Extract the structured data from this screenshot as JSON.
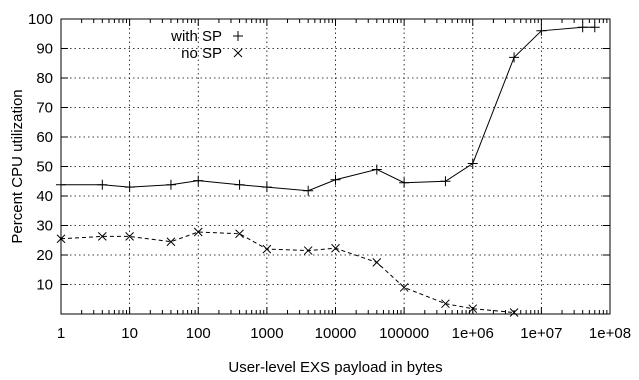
{
  "chart_data": {
    "type": "line",
    "title": "",
    "xlabel": "User-level EXS payload in bytes",
    "ylabel": "Percent CPU utilization",
    "x_scale": "log",
    "xlim": [
      1,
      100000000
    ],
    "ylim": [
      0,
      100
    ],
    "grid": true,
    "legend_position": "top-left",
    "x_ticks": [
      {
        "value": 1,
        "label": "1"
      },
      {
        "value": 10,
        "label": "10"
      },
      {
        "value": 100,
        "label": "100"
      },
      {
        "value": 1000,
        "label": "1000"
      },
      {
        "value": 10000,
        "label": "10000"
      },
      {
        "value": 100000,
        "label": "100000"
      },
      {
        "value": 1000000,
        "label": "1e+06"
      },
      {
        "value": 10000000,
        "label": "1e+07"
      },
      {
        "value": 100000000,
        "label": "1e+08"
      }
    ],
    "y_ticks": [
      {
        "value": 10,
        "label": "10"
      },
      {
        "value": 20,
        "label": "20"
      },
      {
        "value": 30,
        "label": "30"
      },
      {
        "value": 40,
        "label": "40"
      },
      {
        "value": 50,
        "label": "50"
      },
      {
        "value": 60,
        "label": "60"
      },
      {
        "value": 70,
        "label": "70"
      },
      {
        "value": 80,
        "label": "80"
      },
      {
        "value": 90,
        "label": "90"
      },
      {
        "value": 100,
        "label": "100"
      }
    ],
    "series": [
      {
        "name": "with SP",
        "marker": "plus",
        "line_style": "solid",
        "x": [
          1,
          4,
          10,
          40,
          100,
          400,
          1000,
          4000,
          10000,
          40000,
          100000,
          400000,
          1000000,
          4000000,
          10000000,
          40000000,
          60000000
        ],
        "y": [
          43.8,
          43.8,
          43.0,
          43.8,
          45.2,
          43.8,
          43.0,
          41.8,
          45.5,
          49.0,
          44.5,
          45.0,
          51.0,
          87.0,
          96.0,
          97.2,
          97.2
        ]
      },
      {
        "name": "no SP",
        "marker": "x",
        "line_style": "dashed",
        "x": [
          1,
          4,
          10,
          40,
          100,
          400,
          1000,
          4000,
          10000,
          40000,
          100000,
          400000,
          1000000,
          4000000
        ],
        "y": [
          25.5,
          26.3,
          26.3,
          24.5,
          27.8,
          27.2,
          22.0,
          21.5,
          22.3,
          17.5,
          9.0,
          3.5,
          1.8,
          0.5
        ]
      }
    ]
  }
}
